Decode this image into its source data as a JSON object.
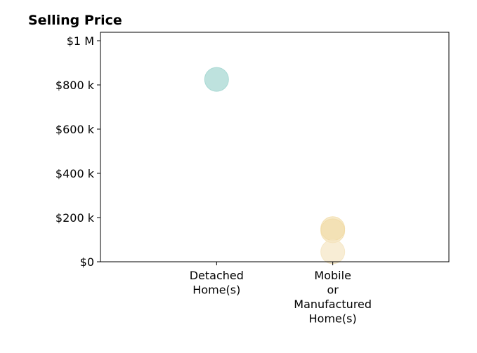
{
  "chart_data": {
    "type": "scatter",
    "title": "Selling Price",
    "xlabel": "",
    "ylabel": "",
    "categories": [
      [
        "Detached",
        "Home(s)"
      ],
      [
        "Mobile",
        "or",
        "Manufactured",
        "Home(s)"
      ]
    ],
    "x_range": [
      -1,
      2
    ],
    "ylim": [
      0,
      1000000
    ],
    "yticks": [
      {
        "value": 0,
        "label": "$0"
      },
      {
        "value": 200000,
        "label": "$200 k"
      },
      {
        "value": 400000,
        "label": "$400 k"
      },
      {
        "value": 600000,
        "label": "$600 k"
      },
      {
        "value": 800000,
        "label": "$800 k"
      },
      {
        "value": 1000000,
        "label": "$1 M"
      }
    ],
    "grid": false,
    "legend": "none",
    "points": [
      {
        "category_index": 0,
        "y": 825000,
        "color": "#a8d8d3",
        "opacity": 0.75
      },
      {
        "category_index": 1,
        "y": 150000,
        "color": "#f0d9a2",
        "opacity": 0.55
      },
      {
        "category_index": 1,
        "y": 140000,
        "color": "#f0d9a2",
        "opacity": 0.55
      },
      {
        "category_index": 1,
        "y": 45000,
        "color": "#f5e6c3",
        "opacity": 0.7
      }
    ]
  }
}
